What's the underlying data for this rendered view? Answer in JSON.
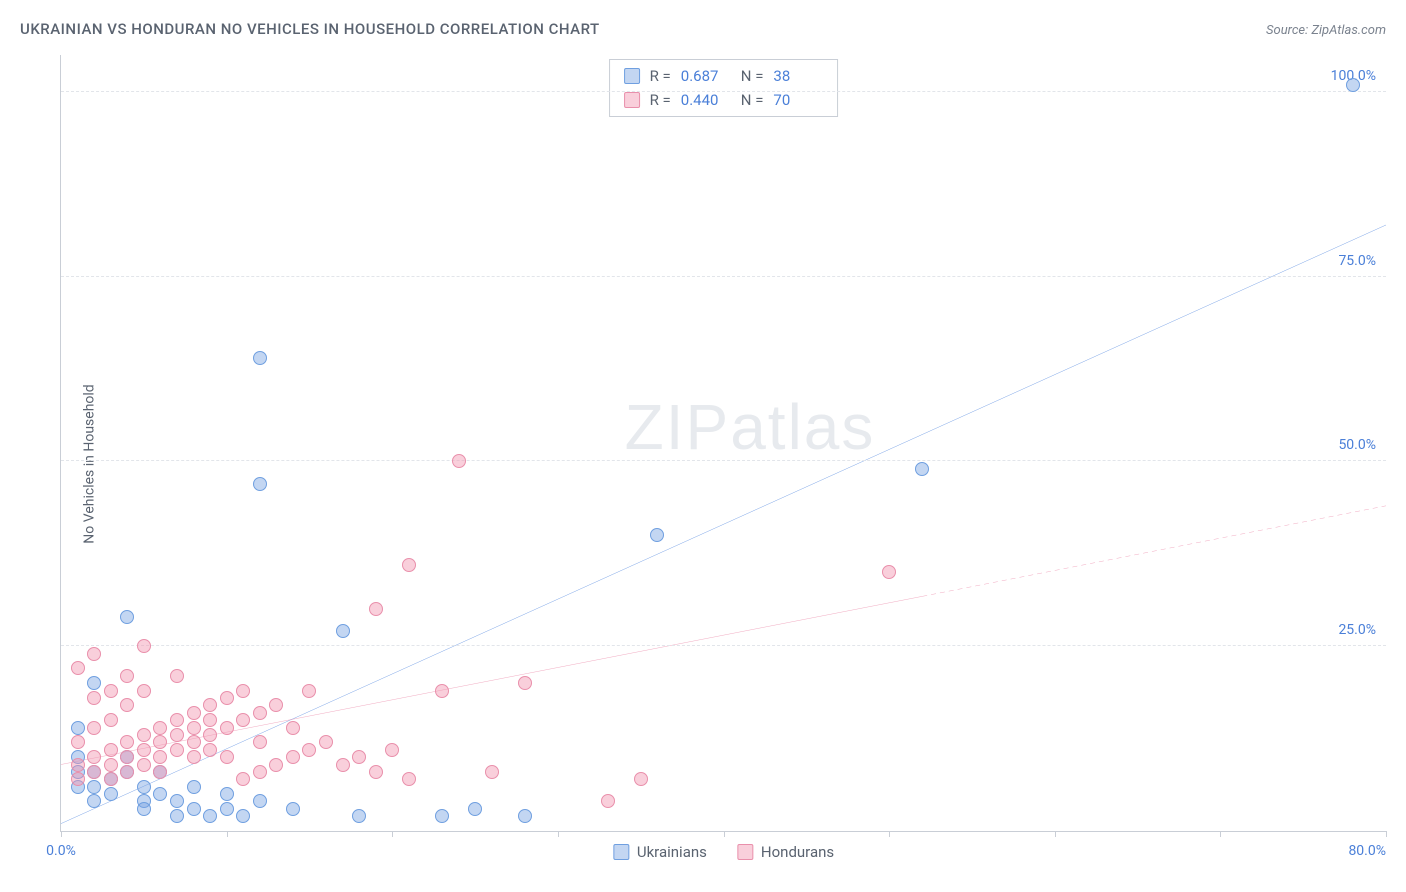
{
  "header": {
    "title": "UKRAINIAN VS HONDURAN NO VEHICLES IN HOUSEHOLD CORRELATION CHART",
    "source_prefix": "Source: ",
    "source_link": "ZipAtlas.com"
  },
  "y_axis_label": "No Vehicles in Household",
  "watermark": {
    "bold": "ZIP",
    "light": "atlas"
  },
  "chart": {
    "type": "scatter",
    "xlim": [
      0,
      80
    ],
    "ylim": [
      0,
      105
    ],
    "x_ticks": [
      0,
      10,
      20,
      30,
      40,
      50,
      60,
      70,
      80
    ],
    "x_tick_labels": {
      "0": "0.0%",
      "80": "80.0%"
    },
    "y_ticks": [
      25,
      50,
      75,
      100
    ],
    "y_tick_labels": {
      "25": "25.0%",
      "50": "50.0%",
      "75": "75.0%",
      "100": "100.0%"
    },
    "grid_color": "#e2e5ea",
    "axis_color": "#c9ced6",
    "background_color": "#ffffff",
    "tick_label_color": "#4a7fd8",
    "series": [
      {
        "key": "ukrainians",
        "label": "Ukrainians",
        "fill": "rgba(121,164,226,0.45)",
        "stroke": "#6f9fe0",
        "line_color": "#2e6fd9",
        "line_width": 2.2,
        "R": "0.687",
        "N": "38",
        "trend": {
          "x1": 0,
          "y1": 1,
          "x2": 80,
          "y2": 82,
          "x_data_max": 80
        },
        "points": [
          [
            1,
            14
          ],
          [
            1,
            10
          ],
          [
            1,
            8
          ],
          [
            1,
            6
          ],
          [
            2,
            8
          ],
          [
            2,
            6
          ],
          [
            2,
            4
          ],
          [
            2,
            20
          ],
          [
            3,
            7
          ],
          [
            3,
            5
          ],
          [
            4,
            10
          ],
          [
            4,
            29
          ],
          [
            4,
            8
          ],
          [
            5,
            6
          ],
          [
            5,
            4
          ],
          [
            5,
            3
          ],
          [
            6,
            5
          ],
          [
            6,
            8
          ],
          [
            7,
            4
          ],
          [
            7,
            2
          ],
          [
            8,
            6
          ],
          [
            8,
            3
          ],
          [
            9,
            2
          ],
          [
            10,
            5
          ],
          [
            10,
            3
          ],
          [
            11,
            2
          ],
          [
            12,
            4
          ],
          [
            12,
            47
          ],
          [
            12,
            64
          ],
          [
            14,
            3
          ],
          [
            17,
            27
          ],
          [
            18,
            2
          ],
          [
            23,
            2
          ],
          [
            25,
            3
          ],
          [
            28,
            2
          ],
          [
            36,
            40
          ],
          [
            52,
            49
          ],
          [
            78,
            101
          ]
        ]
      },
      {
        "key": "hondurans",
        "label": "Hondurans",
        "fill": "rgba(241,149,176,0.45)",
        "stroke": "#e98fab",
        "line_color": "#e76b94",
        "line_width": 2.0,
        "R": "0.440",
        "N": "70",
        "trend": {
          "x1": 0,
          "y1": 9,
          "x2": 80,
          "y2": 44,
          "x_data_max": 52
        },
        "points": [
          [
            1,
            9
          ],
          [
            1,
            7
          ],
          [
            1,
            12
          ],
          [
            1,
            22
          ],
          [
            2,
            10
          ],
          [
            2,
            8
          ],
          [
            2,
            14
          ],
          [
            2,
            18
          ],
          [
            2,
            24
          ],
          [
            3,
            11
          ],
          [
            3,
            9
          ],
          [
            3,
            7
          ],
          [
            3,
            15
          ],
          [
            3,
            19
          ],
          [
            4,
            12
          ],
          [
            4,
            10
          ],
          [
            4,
            8
          ],
          [
            4,
            17
          ],
          [
            4,
            21
          ],
          [
            5,
            13
          ],
          [
            5,
            11
          ],
          [
            5,
            9
          ],
          [
            5,
            19
          ],
          [
            5,
            25
          ],
          [
            6,
            14
          ],
          [
            6,
            12
          ],
          [
            6,
            10
          ],
          [
            6,
            8
          ],
          [
            7,
            15
          ],
          [
            7,
            13
          ],
          [
            7,
            11
          ],
          [
            7,
            21
          ],
          [
            8,
            16
          ],
          [
            8,
            14
          ],
          [
            8,
            12
          ],
          [
            8,
            10
          ],
          [
            9,
            17
          ],
          [
            9,
            15
          ],
          [
            9,
            13
          ],
          [
            9,
            11
          ],
          [
            10,
            18
          ],
          [
            10,
            14
          ],
          [
            10,
            10
          ],
          [
            11,
            15
          ],
          [
            11,
            19
          ],
          [
            11,
            7
          ],
          [
            12,
            16
          ],
          [
            12,
            12
          ],
          [
            12,
            8
          ],
          [
            13,
            17
          ],
          [
            13,
            9
          ],
          [
            14,
            14
          ],
          [
            14,
            10
          ],
          [
            15,
            19
          ],
          [
            15,
            11
          ],
          [
            16,
            12
          ],
          [
            17,
            9
          ],
          [
            18,
            10
          ],
          [
            19,
            8
          ],
          [
            19,
            30
          ],
          [
            20,
            11
          ],
          [
            21,
            7
          ],
          [
            21,
            36
          ],
          [
            23,
            19
          ],
          [
            24,
            50
          ],
          [
            26,
            8
          ],
          [
            28,
            20
          ],
          [
            33,
            4
          ],
          [
            35,
            7
          ],
          [
            50,
            35
          ]
        ]
      }
    ],
    "point_radius": 7,
    "point_stroke_width": 1
  },
  "legend_top": {
    "R_label": "R",
    "N_label": "N",
    "eq": "="
  },
  "legend_bottom_order": [
    "ukrainians",
    "hondurans"
  ]
}
